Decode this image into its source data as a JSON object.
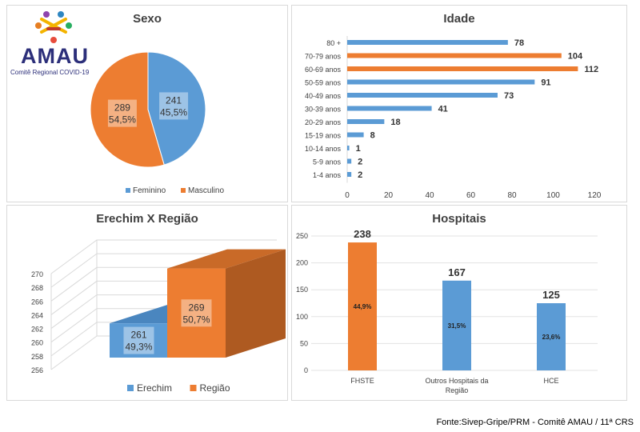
{
  "logo": {
    "name": "AMAU",
    "subtitle": "Comitê Regional COVID-19"
  },
  "source": "Fonte:Sivep-Gripe/PRM - Comitê AMAU / 11ª CRS",
  "colors": {
    "blue": "#5B9BD5",
    "orange": "#ED7D31",
    "blue_dark": "#41719C",
    "orange_dark": "#AE5A21"
  },
  "chart_data": [
    {
      "type": "pie",
      "title": "Sexo",
      "slices": [
        {
          "name": "Feminino",
          "value": 241,
          "label_pct": "45,5%"
        },
        {
          "name": "Masculino",
          "value": 289,
          "label_pct": "54,5%"
        }
      ],
      "legend": "bottom"
    },
    {
      "type": "bar",
      "orientation": "horizontal",
      "title": "Idade",
      "categories": [
        "80 +",
        "70-79 anos",
        "60-69 anos",
        "50-59 anos",
        "40-49 anos",
        "30-39 anos",
        "20-29 anos",
        "15-19 anos",
        "10-14 anos",
        "5-9 anos",
        "1-4 anos"
      ],
      "values": [
        78,
        104,
        112,
        91,
        73,
        41,
        18,
        8,
        1,
        2,
        2
      ],
      "colors": [
        "blue",
        "orange",
        "orange",
        "blue",
        "blue",
        "blue",
        "blue",
        "blue",
        "blue",
        "blue",
        "blue"
      ],
      "xlim": [
        0,
        120
      ],
      "xticks": [
        0,
        20,
        40,
        60,
        80,
        100,
        120
      ]
    },
    {
      "type": "bar",
      "style": "3d",
      "title": "Erechim X Região",
      "categories": [
        "Erechim",
        "Região"
      ],
      "values": [
        261,
        269
      ],
      "labels_pct": [
        "49,3%",
        "50,7%"
      ],
      "ylim": [
        256,
        270
      ],
      "yticks": [
        256,
        258,
        260,
        262,
        264,
        266,
        268,
        270
      ],
      "legend": "bottom"
    },
    {
      "type": "bar",
      "title": "Hospitais",
      "categories": [
        "FHSTE",
        "Outros Hospitais da Região",
        "HCE"
      ],
      "values": [
        238,
        167,
        125
      ],
      "labels_pct": [
        "44,9%",
        "31,5%",
        "23,6%"
      ],
      "colors": [
        "orange",
        "blue",
        "blue"
      ],
      "ylim": [
        0,
        250
      ],
      "yticks": [
        0,
        50,
        100,
        150,
        200,
        250
      ]
    }
  ]
}
